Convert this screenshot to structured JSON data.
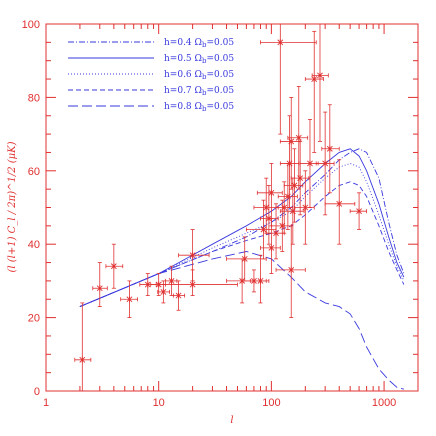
{
  "chart_data": {
    "type": "line",
    "xlabel": "l",
    "ylabel": "(l (l+1) C_l / 2π)^1/2 (μK)",
    "xscale": "log",
    "xlim": [
      1,
      2000
    ],
    "ylim": [
      0,
      100
    ],
    "x_ticks": [
      "1",
      "10",
      "100",
      "1000"
    ],
    "y_ticks": [
      "0",
      "20",
      "40",
      "60",
      "80",
      "100"
    ],
    "legend_position": "top-left",
    "colors": {
      "axes": "#e03030",
      "data": "#e03030",
      "models": "#3a3adf"
    },
    "series": [
      {
        "name": "h=0.4  Ω_b=0.05",
        "label": "h=0.4",
        "omega": "Ω",
        "sub": "b",
        "val": "=0.05",
        "dash": "6,2,1,2",
        "x": [
          2,
          10,
          30,
          60,
          100,
          150,
          200,
          300,
          400,
          500,
          600,
          700,
          900,
          1100,
          1300,
          1500
        ],
        "y": [
          23,
          32,
          38,
          42,
          46,
          50,
          54,
          59,
          63,
          65,
          66,
          65,
          58,
          46,
          37,
          32
        ]
      },
      {
        "name": "h=0.5  Ω_b=0.05",
        "label": "h=0.5",
        "omega": "Ω",
        "sub": "b",
        "val": "=0.05",
        "dash": "",
        "x": [
          2,
          10,
          30,
          60,
          100,
          150,
          200,
          300,
          400,
          500,
          600,
          700,
          900,
          1100,
          1300,
          1500
        ],
        "y": [
          23,
          32,
          40,
          45,
          49,
          53,
          57,
          62,
          65,
          66,
          64,
          60,
          51,
          42,
          35,
          31
        ]
      },
      {
        "name": "h=0.6  Ω_b=0.05",
        "label": "h=0.6",
        "omega": "Ω",
        "sub": "b",
        "val": "=0.05",
        "dash": "1,2",
        "x": [
          2,
          10,
          30,
          60,
          100,
          150,
          200,
          300,
          400,
          500,
          600,
          700,
          900,
          1100,
          1300,
          1500
        ],
        "y": [
          23,
          32,
          39,
          43,
          46,
          49,
          53,
          58,
          61,
          62,
          61,
          57,
          48,
          40,
          34,
          30
        ]
      },
      {
        "name": "h=0.7  Ω_b=0.05",
        "label": "h=0.7",
        "omega": "Ω",
        "sub": "b",
        "val": "=0.05",
        "dash": "5,3",
        "x": [
          2,
          10,
          30,
          60,
          100,
          150,
          200,
          300,
          400,
          500,
          600,
          700,
          900,
          1100,
          1300,
          1500
        ],
        "y": [
          23,
          32,
          38,
          41,
          43,
          45,
          48,
          53,
          56,
          57,
          56,
          53,
          45,
          38,
          33,
          29
        ]
      },
      {
        "name": "h=0.8  Ω_b=0.05",
        "label": "h=0.8",
        "omega": "Ω",
        "sub": "b",
        "val": "=0.05",
        "dash": "10,4",
        "x": [
          2,
          10,
          30,
          60,
          100,
          150,
          200,
          300,
          400,
          500,
          600,
          700,
          900,
          1100,
          1300,
          1500
        ],
        "y": [
          23,
          32,
          36,
          38,
          36,
          31,
          27,
          24,
          23,
          21,
          17,
          12,
          6,
          3,
          1,
          0.5
        ]
      }
    ],
    "data_points": [
      {
        "x": 2.1,
        "y": 8.5,
        "xlo": 1.8,
        "xhi": 2.5,
        "ylo": 0,
        "yhi": 24
      },
      {
        "x": 3,
        "y": 28,
        "xlo": 2.6,
        "xhi": 3.5,
        "ylo": 23,
        "yhi": 35
      },
      {
        "x": 4,
        "y": 34,
        "xlo": 3.4,
        "xhi": 4.8,
        "ylo": 28,
        "yhi": 40
      },
      {
        "x": 5.5,
        "y": 25,
        "xlo": 4.6,
        "xhi": 6.5,
        "ylo": 20,
        "yhi": 30
      },
      {
        "x": 8,
        "y": 29,
        "xlo": 6.8,
        "xhi": 9.5,
        "ylo": 26,
        "yhi": 32
      },
      {
        "x": 10,
        "y": 29,
        "xlo": 8.5,
        "xhi": 11.5,
        "ylo": 26,
        "yhi": 32
      },
      {
        "x": 11,
        "y": 27,
        "xlo": 9.8,
        "xhi": 12.5,
        "ylo": 24,
        "yhi": 30
      },
      {
        "x": 13,
        "y": 30,
        "xlo": 11.5,
        "xhi": 14.5,
        "ylo": 26,
        "yhi": 34
      },
      {
        "x": 15,
        "y": 26,
        "xlo": 13.5,
        "xhi": 17,
        "ylo": 22,
        "yhi": 30
      },
      {
        "x": 20,
        "y": 37,
        "xlo": 15,
        "xhi": 28,
        "ylo": 30,
        "yhi": 44
      },
      {
        "x": 20,
        "y": 29,
        "xlo": 10,
        "xhi": 50,
        "ylo": 26,
        "yhi": 33
      },
      {
        "x": 55,
        "y": 30,
        "xlo": 40,
        "xhi": 70,
        "ylo": 24,
        "yhi": 36
      },
      {
        "x": 58,
        "y": 36,
        "xlo": 40,
        "xhi": 90,
        "ylo": 30,
        "yhi": 42
      },
      {
        "x": 70,
        "y": 30,
        "xlo": 55,
        "xhi": 90,
        "ylo": 27,
        "yhi": 33
      },
      {
        "x": 80,
        "y": 30,
        "xlo": 65,
        "xhi": 95,
        "ylo": 24,
        "yhi": 37
      },
      {
        "x": 85,
        "y": 44,
        "xlo": 60,
        "xhi": 110,
        "ylo": 36,
        "yhi": 52
      },
      {
        "x": 90,
        "y": 50,
        "xlo": 70,
        "xhi": 115,
        "ylo": 43,
        "yhi": 58
      },
      {
        "x": 95,
        "y": 47,
        "xlo": 80,
        "xhi": 115,
        "ylo": 40,
        "yhi": 56
      },
      {
        "x": 100,
        "y": 39,
        "xlo": 80,
        "xhi": 120,
        "ylo": 32,
        "yhi": 47
      },
      {
        "x": 100,
        "y": 54,
        "xlo": 75,
        "xhi": 125,
        "ylo": 45,
        "yhi": 62
      },
      {
        "x": 110,
        "y": 43,
        "xlo": 90,
        "xhi": 130,
        "ylo": 36,
        "yhi": 51
      },
      {
        "x": 120,
        "y": 95,
        "xlo": 80,
        "xhi": 250,
        "ylo": 70,
        "yhi": 100
      },
      {
        "x": 125,
        "y": 45,
        "xlo": 100,
        "xhi": 150,
        "ylo": 38,
        "yhi": 52
      },
      {
        "x": 130,
        "y": 50,
        "xlo": 110,
        "xhi": 155,
        "ylo": 43,
        "yhi": 57
      },
      {
        "x": 140,
        "y": 53,
        "xlo": 115,
        "xhi": 170,
        "ylo": 44,
        "yhi": 62
      },
      {
        "x": 145,
        "y": 62,
        "xlo": 120,
        "xhi": 175,
        "ylo": 50,
        "yhi": 75
      },
      {
        "x": 150,
        "y": 68,
        "xlo": 120,
        "xhi": 180,
        "ylo": 55,
        "yhi": 80
      },
      {
        "x": 150,
        "y": 33,
        "xlo": 110,
        "xhi": 200,
        "ylo": 20,
        "yhi": 45
      },
      {
        "x": 155,
        "y": 49,
        "xlo": 120,
        "xhi": 195,
        "ylo": 40,
        "yhi": 58
      },
      {
        "x": 160,
        "y": 56,
        "xlo": 130,
        "xhi": 190,
        "ylo": 46,
        "yhi": 66
      },
      {
        "x": 175,
        "y": 69,
        "xlo": 140,
        "xhi": 210,
        "ylo": 55,
        "yhi": 83
      },
      {
        "x": 180,
        "y": 58,
        "xlo": 150,
        "xhi": 215,
        "ylo": 48,
        "yhi": 68
      },
      {
        "x": 200,
        "y": 50,
        "xlo": 160,
        "xhi": 240,
        "ylo": 40,
        "yhi": 60
      },
      {
        "x": 220,
        "y": 62,
        "xlo": 180,
        "xhi": 260,
        "ylo": 50,
        "yhi": 74
      },
      {
        "x": 240,
        "y": 85,
        "xlo": 200,
        "xhi": 290,
        "ylo": 65,
        "yhi": 98
      },
      {
        "x": 270,
        "y": 86,
        "xlo": 230,
        "xhi": 320,
        "ylo": 68,
        "yhi": 100
      },
      {
        "x": 300,
        "y": 62,
        "xlo": 250,
        "xhi": 360,
        "ylo": 48,
        "yhi": 76
      },
      {
        "x": 330,
        "y": 66,
        "xlo": 280,
        "xhi": 400,
        "ylo": 54,
        "yhi": 78
      },
      {
        "x": 400,
        "y": 51,
        "xlo": 300,
        "xhi": 550,
        "ylo": 40,
        "yhi": 63
      },
      {
        "x": 600,
        "y": 49,
        "xlo": 500,
        "xhi": 700,
        "ylo": 44,
        "yhi": 54
      }
    ]
  }
}
